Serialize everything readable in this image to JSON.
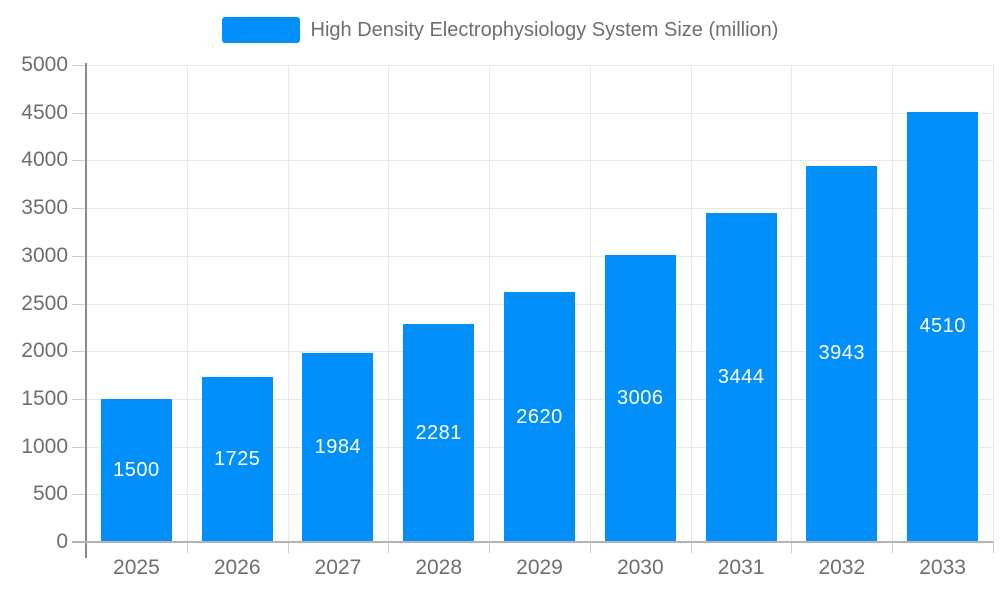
{
  "legend": {
    "items": [
      {
        "label": "High Density Electrophysiology System Size (million)",
        "color": "#008FFB"
      }
    ]
  },
  "chart_data": {
    "type": "bar",
    "title": "High Density Electrophysiology System Size (million)",
    "categories": [
      "2025",
      "2026",
      "2027",
      "2028",
      "2029",
      "2030",
      "2031",
      "2032",
      "2033"
    ],
    "values": [
      1500,
      1725,
      1984,
      2281,
      2620,
      3006,
      3444,
      3943,
      4510
    ],
    "value_labels": [
      "1500",
      "1725",
      "1984",
      "2281",
      "2620",
      "3006",
      "3444",
      "3943",
      "4510"
    ],
    "xlabel": "",
    "ylabel": "",
    "ylim": [
      0,
      5000
    ],
    "ytick_step": 500,
    "ytick_labels": [
      "0",
      "500",
      "1000",
      "1500",
      "2000",
      "2500",
      "3000",
      "3500",
      "4000",
      "4500",
      "5000"
    ],
    "grid": true,
    "legend_position": "top",
    "colors": {
      "bar": "#008FFB",
      "value_label": "#ffffff",
      "axis_text": "#6e6e6e",
      "grid": "#e8e8e8",
      "tick": "#cccccc",
      "baseline": "#b3b3b3",
      "axis_line": "#8c8c8c"
    }
  }
}
